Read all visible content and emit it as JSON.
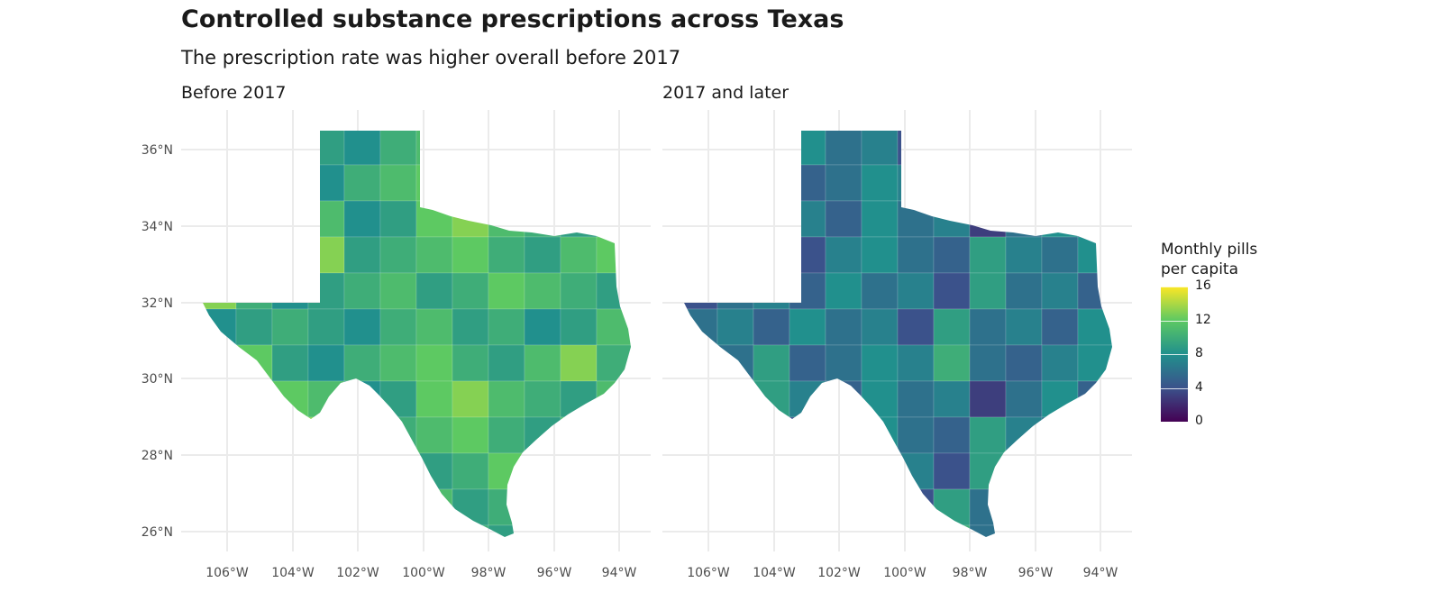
{
  "title": "Controlled substance prescriptions across Texas",
  "subtitle": "The prescription rate was higher overall before 2017",
  "map": {
    "type": "choropleth",
    "region": "Texas counties",
    "facets": [
      {
        "label": "Before 2017",
        "county_levels": [
          8,
          9,
          10,
          9,
          8,
          10,
          11,
          9,
          10,
          8,
          9,
          11,
          10,
          12,
          9,
          8,
          10,
          11,
          12,
          10,
          9,
          11,
          13,
          10,
          9,
          10,
          12,
          11,
          8,
          9,
          12,
          13,
          11,
          10,
          9,
          11,
          12,
          10,
          11,
          13,
          9,
          10,
          11,
          12,
          10,
          9,
          11,
          12,
          13,
          10,
          8,
          9,
          10,
          11,
          9,
          10,
          12,
          11,
          10,
          9
        ]
      },
      {
        "label": "2017 and later",
        "county_levels": [
          6,
          7,
          5,
          8,
          6,
          7,
          4,
          9,
          6,
          7,
          5,
          8,
          7,
          6,
          9,
          5,
          6,
          8,
          7,
          10,
          6,
          5,
          7,
          8,
          4,
          6,
          9,
          7,
          5,
          8,
          6,
          7,
          3,
          6,
          8,
          5,
          7,
          9,
          6,
          4,
          7,
          8,
          6,
          5,
          9,
          7,
          6,
          8,
          4,
          6,
          7,
          5,
          8,
          6,
          7,
          4,
          9,
          6,
          7,
          5
        ]
      }
    ],
    "y_ticks": [
      "26°N",
      "28°N",
      "30°N",
      "32°N",
      "34°N",
      "36°N"
    ],
    "x_ticks": [
      "106°W",
      "104°W",
      "102°W",
      "100°W",
      "98°W",
      "96°W",
      "94°W"
    ],
    "legend": {
      "title_line1": "Monthly pills",
      "title_line2": "per capita",
      "breaks": [
        "0",
        "4",
        "8",
        "12",
        "16"
      ],
      "range": [
        0,
        16
      ],
      "colors": [
        "#440154",
        "#3b528b",
        "#21908d",
        "#5dc962",
        "#fde725"
      ]
    }
  }
}
